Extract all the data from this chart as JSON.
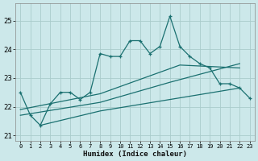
{
  "xlabel": "Humidex (Indice chaleur)",
  "bg_color": "#cce8ea",
  "grid_color": "#aacccc",
  "line_color": "#1a7070",
  "xlim": [
    -0.5,
    23.5
  ],
  "ylim": [
    20.8,
    25.6
  ],
  "yticks": [
    21,
    22,
    23,
    24,
    25
  ],
  "xticks": [
    0,
    1,
    2,
    3,
    4,
    5,
    6,
    7,
    8,
    9,
    10,
    11,
    12,
    13,
    14,
    15,
    16,
    17,
    18,
    19,
    20,
    21,
    22,
    23
  ],
  "series1_x": [
    0,
    1,
    2,
    3,
    4,
    5,
    6,
    7,
    8,
    9,
    10,
    11,
    12,
    13,
    14,
    15,
    16,
    17,
    18,
    19,
    20,
    21,
    22,
    23
  ],
  "series1_y": [
    22.5,
    21.7,
    21.35,
    22.1,
    22.5,
    22.5,
    22.25,
    22.5,
    23.85,
    23.75,
    23.75,
    24.3,
    24.3,
    23.85,
    24.1,
    25.15,
    24.1,
    23.75,
    23.5,
    23.35,
    22.8,
    22.8,
    22.65,
    22.3
  ],
  "series2_x": [
    2,
    8,
    15,
    22
  ],
  "series2_y": [
    21.35,
    21.85,
    22.25,
    22.65
  ],
  "series3_x": [
    0,
    8,
    15,
    22
  ],
  "series3_y": [
    21.7,
    22.15,
    22.85,
    23.5
  ],
  "series4_x": [
    0,
    8,
    16,
    22
  ],
  "series4_y": [
    21.9,
    22.45,
    23.45,
    23.35
  ]
}
